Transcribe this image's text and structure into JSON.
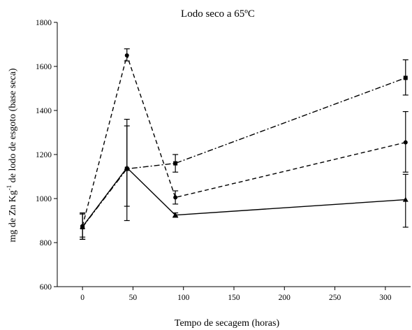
{
  "chart_data": {
    "type": "line",
    "title": "Lodo seco a 65ºC",
    "xlabel": "Tempo de secagem (horas)",
    "ylabel_parts": [
      "mg de Zn Kg",
      "-1",
      " de lodo de esgoto (base seca)"
    ],
    "xlim": [
      -25,
      325
    ],
    "ylim": [
      600,
      1800
    ],
    "xticks": [
      0,
      50,
      100,
      150,
      200,
      250,
      300
    ],
    "yticks": [
      600,
      800,
      1000,
      1200,
      1400,
      1600,
      1800
    ],
    "grid": false,
    "x": [
      0,
      44,
      92,
      320
    ],
    "series": [
      {
        "style": "dashed",
        "marker": "circle",
        "values": [
          875,
          1650,
          1005,
          1255
        ],
        "errors": [
          [
            815,
            930
          ],
          [
            1625,
            1680
          ],
          [
            975,
            1035
          ],
          [
            1120,
            1395
          ]
        ]
      },
      {
        "style": "dashdot",
        "marker": "square",
        "values": [
          870,
          1135,
          1160,
          1548
        ],
        "errors": [
          [
            825,
            930
          ],
          [
            900,
            1330
          ],
          [
            1120,
            1200
          ],
          [
            1470,
            1630
          ]
        ]
      },
      {
        "style": "solid",
        "marker": "triangle",
        "values": [
          872,
          1140,
          925,
          995
        ],
        "errors": [
          [
            815,
            935
          ],
          [
            965,
            1360
          ],
          [
            915,
            935
          ],
          [
            870,
            1110
          ]
        ]
      }
    ]
  }
}
